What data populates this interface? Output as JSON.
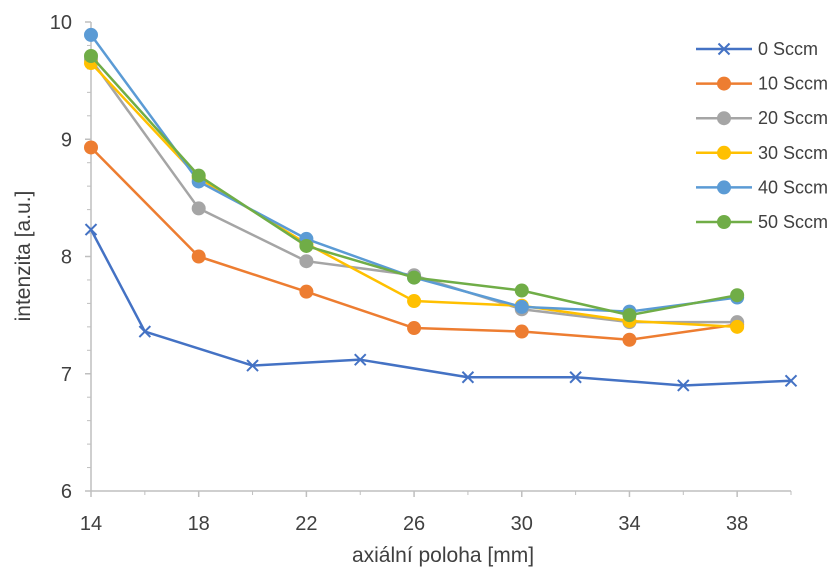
{
  "chart_data": {
    "type": "line",
    "xlabel": "axiální poloha [mm]",
    "ylabel": "intenzita [a.u.]",
    "xlim": [
      14,
      40
    ],
    "ylim": [
      6,
      10
    ],
    "x_ticks": [
      "14",
      "18",
      "22",
      "26",
      "30",
      "34",
      "38"
    ],
    "y_ticks": [
      "6",
      "7",
      "8",
      "9",
      "10"
    ],
    "grid": false,
    "legend_position": "right",
    "series": [
      {
        "name": "0 Sccm",
        "color": "#4472C4",
        "marker": "x",
        "x": [
          14,
          16,
          20,
          24,
          28,
          32,
          36,
          40
        ],
        "y": [
          8.23,
          7.36,
          7.07,
          7.12,
          6.97,
          6.97,
          6.9,
          6.94
        ]
      },
      {
        "name": "10 Sccm",
        "color": "#ED7D31",
        "marker": "circle",
        "x": [
          14,
          18,
          22,
          26,
          30,
          34,
          38
        ],
        "y": [
          8.93,
          8.0,
          7.7,
          7.39,
          7.36,
          7.29,
          7.42
        ]
      },
      {
        "name": "20 Sccm",
        "color": "#A5A5A5",
        "marker": "circle",
        "x": [
          14,
          18,
          22,
          26,
          30,
          34,
          38
        ],
        "y": [
          9.68,
          8.41,
          7.96,
          7.84,
          7.55,
          7.44,
          7.44
        ]
      },
      {
        "name": "30 Sccm",
        "color": "#FFC000",
        "marker": "circle",
        "x": [
          14,
          18,
          22,
          26,
          30,
          34,
          38
        ],
        "y": [
          9.65,
          8.67,
          8.11,
          7.62,
          7.58,
          7.45,
          7.4
        ]
      },
      {
        "name": "40 Sccm",
        "color": "#5B9BD5",
        "marker": "circle",
        "x": [
          14,
          18,
          22,
          26,
          30,
          34,
          38
        ],
        "y": [
          9.89,
          8.64,
          8.15,
          7.82,
          7.57,
          7.53,
          7.65
        ]
      },
      {
        "name": "50 Sccm",
        "color": "#70AD47",
        "marker": "circle",
        "x": [
          14,
          18,
          22,
          26,
          30,
          34,
          38
        ],
        "y": [
          9.71,
          8.69,
          8.09,
          7.82,
          7.71,
          7.5,
          7.67
        ]
      }
    ]
  }
}
